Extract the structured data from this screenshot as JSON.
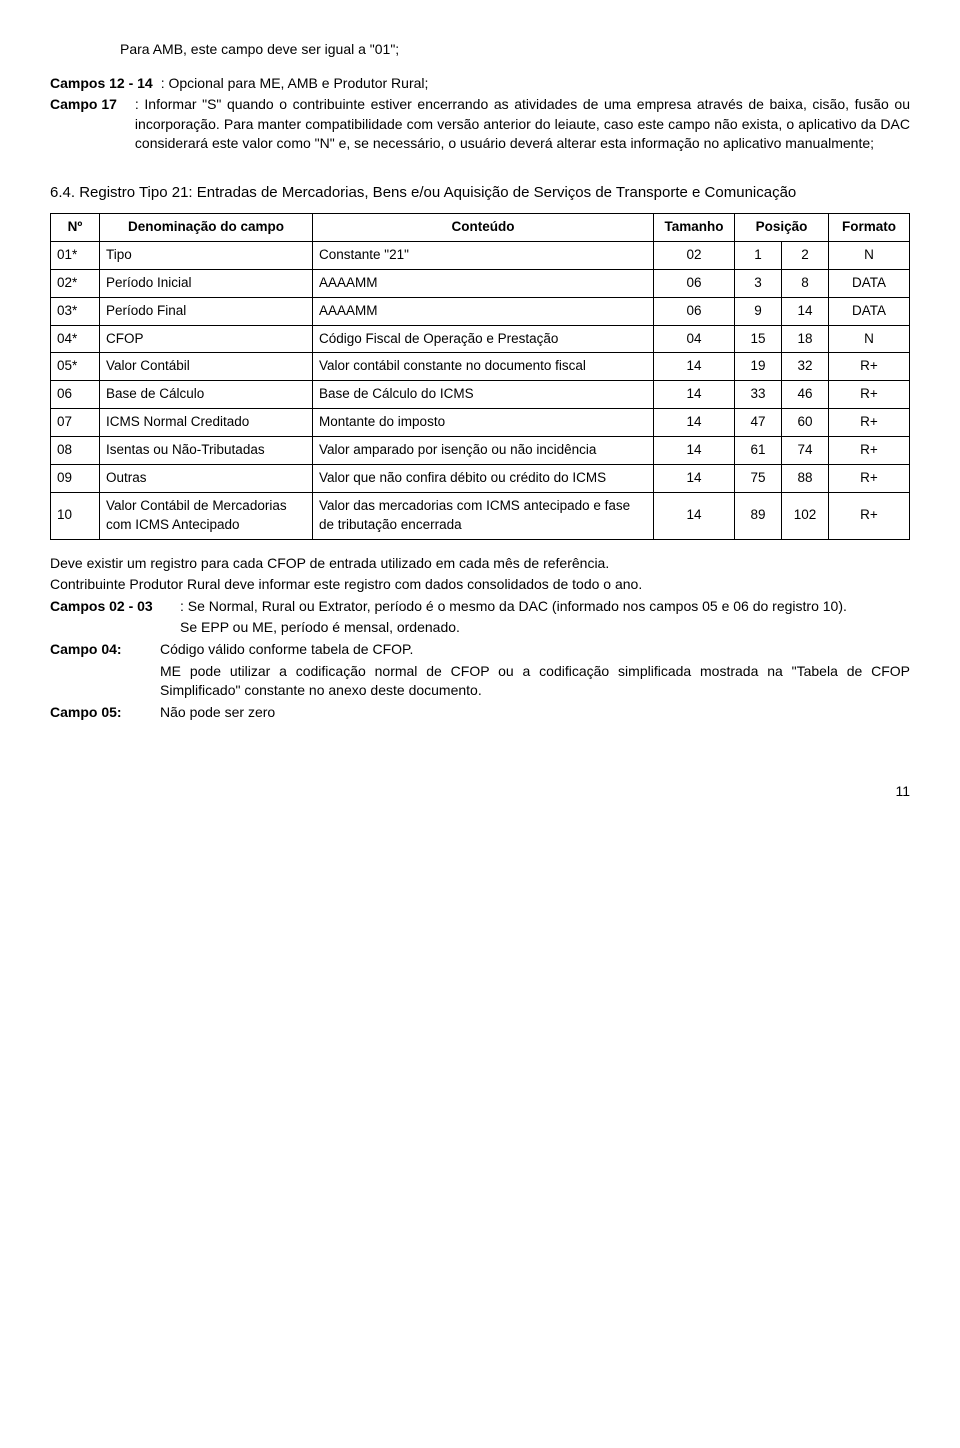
{
  "intro": {
    "line1": "Para AMB, este campo deve ser igual a \"01\";",
    "campos12_14_label": "Campos 12 - 14",
    "campos12_14_text": ": Opcional para ME, AMB e Produtor Rural;",
    "campo17_label": "Campo 17",
    "campo17_text": ": Informar \"S\" quando o contribuinte estiver encerrando as atividades de uma empresa através de baixa, cisão, fusão ou incorporação. Para manter compatibilidade com versão anterior do leiaute, caso este campo não exista, o aplicativo da DAC considerará este valor como \"N\" e, se necessário, o usuário deverá alterar esta informação no aplicativo manualmente;"
  },
  "section": {
    "number": "6.4.",
    "title": "Registro Tipo 21: Entradas de Mercadorias, Bens e/ou Aquisição de Serviços de Transporte e Comunicação"
  },
  "table": {
    "headers": {
      "n": "Nº",
      "den": "Denominação do campo",
      "cont": "Conteúdo",
      "tam": "Tamanho",
      "pos": "Posição",
      "fmt": "Formato"
    },
    "rows": [
      {
        "n": "01*",
        "den": "Tipo",
        "cont": "Constante \"21\"",
        "tam": "02",
        "p1": "1",
        "p2": "2",
        "fmt": "N"
      },
      {
        "n": "02*",
        "den": "Período Inicial",
        "cont": "AAAAMM",
        "tam": "06",
        "p1": "3",
        "p2": "8",
        "fmt": "DATA"
      },
      {
        "n": "03*",
        "den": "Período Final",
        "cont": "AAAAMM",
        "tam": "06",
        "p1": "9",
        "p2": "14",
        "fmt": "DATA"
      },
      {
        "n": "04*",
        "den": "CFOP",
        "cont": "Código Fiscal de Operação e Prestação",
        "tam": "04",
        "p1": "15",
        "p2": "18",
        "fmt": "N"
      },
      {
        "n": "05*",
        "den": "Valor Contábil",
        "cont": "Valor contábil constante no documento fiscal",
        "tam": "14",
        "p1": "19",
        "p2": "32",
        "fmt": "R+"
      },
      {
        "n": "06",
        "den": "Base de Cálculo",
        "cont": "Base de Cálculo do ICMS",
        "tam": "14",
        "p1": "33",
        "p2": "46",
        "fmt": "R+"
      },
      {
        "n": "07",
        "den": "ICMS Normal Creditado",
        "cont": "Montante do imposto",
        "tam": "14",
        "p1": "47",
        "p2": "60",
        "fmt": "R+"
      },
      {
        "n": "08",
        "den": "Isentas ou Não-Tributadas",
        "cont": "Valor amparado por isenção ou não incidência",
        "tam": "14",
        "p1": "61",
        "p2": "74",
        "fmt": "R+"
      },
      {
        "n": "09",
        "den": "Outras",
        "cont": "Valor que não confira débito ou crédito do ICMS",
        "tam": "14",
        "p1": "75",
        "p2": "88",
        "fmt": "R+"
      },
      {
        "n": "10",
        "den": "Valor Contábil de Mercadorias com ICMS Antecipado",
        "cont": "Valor das mercadorias com ICMS antecipado e fase de tributação encerrada",
        "tam": "14",
        "p1": "89",
        "p2": "102",
        "fmt": "R+"
      }
    ]
  },
  "after": {
    "p1": "Deve existir um registro para cada CFOP de entrada utilizado em cada mês de referência.",
    "p2": "Contribuinte Produtor Rural deve informar este registro com dados consolidados de todo o ano.",
    "campos02_03_label": "Campos 02 - 03",
    "campos02_03_text": ": Se Normal, Rural ou Extrator, período é o mesmo da DAC (informado nos campos 05 e 06 do registro 10).",
    "campos02_03_sub": "Se EPP ou ME, período é mensal, ordenado.",
    "campo04_label": "Campo 04:",
    "campo04_text": "Código válido conforme tabela de CFOP.",
    "campo04_sub": "ME pode utilizar a codificação normal de CFOP ou a codificação simplificada mostrada na \"Tabela de CFOP Simplificado\" constante no anexo deste documento.",
    "campo05_label": "Campo 05:",
    "campo05_text": "Não pode ser zero"
  },
  "page_number": "11"
}
